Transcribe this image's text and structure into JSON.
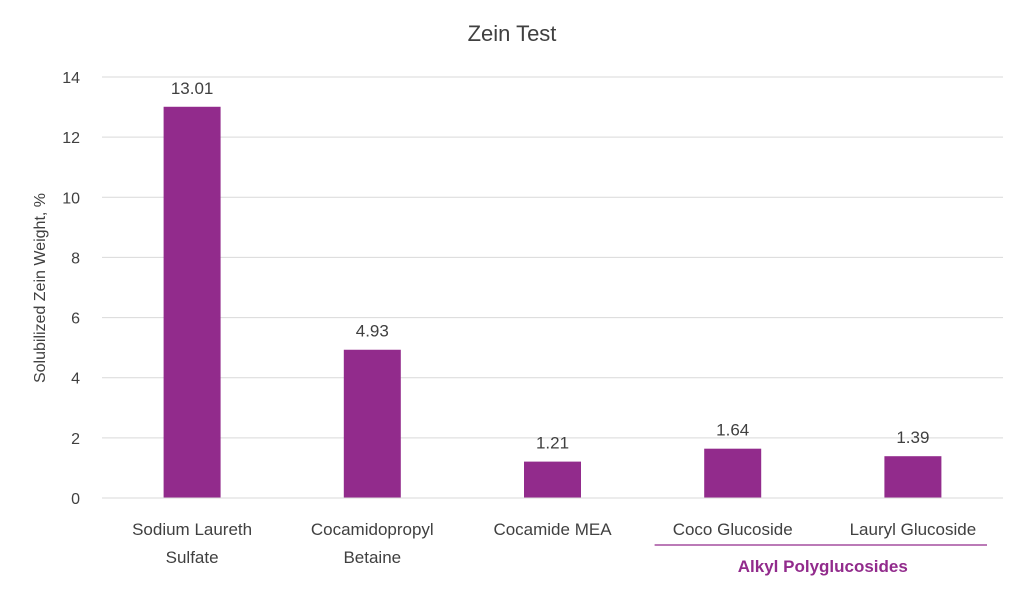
{
  "chart_data": {
    "type": "bar",
    "title": "Zein Test",
    "xlabel": "",
    "ylabel": "Solubilized Zein Weight, %",
    "ylim": [
      0,
      14
    ],
    "yticks": [
      0,
      2,
      4,
      6,
      8,
      10,
      12,
      14
    ],
    "grid": true,
    "categories": [
      [
        "Sodium Laureth",
        "Sulfate"
      ],
      [
        "Cocamidopropyl",
        "Betaine"
      ],
      [
        "Cocamide MEA"
      ],
      [
        "Coco Glucoside"
      ],
      [
        "Lauryl Glucoside"
      ]
    ],
    "values": [
      13.01,
      4.93,
      1.21,
      1.64,
      1.39
    ],
    "data_labels": [
      "13.01",
      "4.93",
      "1.21",
      "1.64",
      "1.39"
    ],
    "bar_color": "#922B8C",
    "group_annotation": {
      "label": "Alkyl Polyglucosides",
      "categories": [
        3,
        4
      ],
      "color": "#922B8C"
    }
  }
}
